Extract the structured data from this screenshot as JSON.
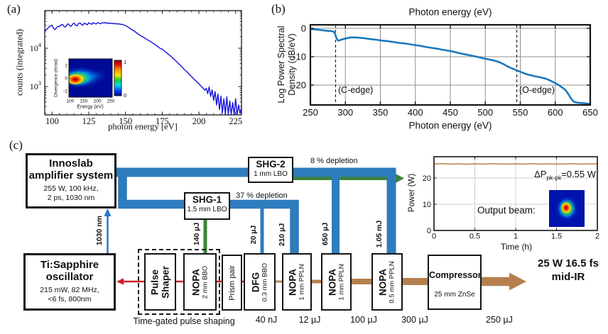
{
  "colors": {
    "spectrum_blue": "#1414d8",
    "psd_blue": "#1a79bd",
    "band_blue": "#2e7bbd",
    "seed_blue": "#2878c8",
    "green": "#3c8339",
    "red": "#cb2027",
    "brown": "#b5804e",
    "grid_gray": "#8f8f8f",
    "inset_grid": "#cfcfcf",
    "axis_black": "#151515"
  },
  "panel_a": {
    "tag": "(a)",
    "xlabel": "photon energy [eV]",
    "ylabel": "counts (integrated)",
    "xticks": [
      100,
      125,
      150,
      175,
      200,
      225
    ],
    "ytick_exponents": [
      4,
      3
    ],
    "inset": {
      "xlabel": "Energy (eV)",
      "ylabel": "Divergence (mrad)",
      "xticks": [
        100,
        150,
        200,
        250
      ],
      "yticks": [
        2,
        0,
        -2
      ],
      "cbar_max": "1",
      "cbar_min": "0"
    }
  },
  "panel_b": {
    "tag": "(b)",
    "title": "Photon energy (eV)",
    "xlabel": "Photon energy (eV)",
    "ylabel_line1": "Log Power Spectral",
    "ylabel_line2": "Density (dB/eV)",
    "xticks": [
      250,
      300,
      350,
      400,
      450,
      500,
      550,
      600,
      650
    ],
    "yticks": [
      0,
      -10,
      -20
    ],
    "c_edge_label": "(C-edge)",
    "o_edge_label": "(O-edge)"
  },
  "panel_c": {
    "tag": "(c)",
    "boxes": {
      "innoslab": {
        "line1": "Innoslab",
        "line2": "amplifier system",
        "sub1": "255 W, 100 kHz,",
        "sub2": "2 ps, 1030 nm"
      },
      "tisapphire": {
        "line1": "Ti:Sapphire",
        "line2": "oscillator",
        "sub1": "215 mW, 82 MHz,",
        "sub2": "<6 fs, 800nm"
      },
      "shg2": {
        "title": "SHG-2",
        "sub": "1 mm LBO"
      },
      "shg1": {
        "title": "SHG-1",
        "sub": "1.5 mm LBO"
      },
      "pulse_shaper": {
        "line1": "Pulse",
        "line2": "Shaper"
      },
      "nopa_bbo": {
        "title": "NOPA",
        "sub": "2 mm BBO"
      },
      "prism": {
        "title": "Prism pair"
      },
      "dfg": {
        "title": "DFG",
        "sub": "0.3 mm BBO"
      },
      "nopa_ppln1": {
        "title": "NOPA",
        "sub": "1 mm PPLN"
      },
      "nopa_ppln2": {
        "title": "NOPA",
        "sub": "1 mm PPLN"
      },
      "nopa_ppln3": {
        "title": "NOPA",
        "sub": "0.5 mm PPLN"
      },
      "compressor": {
        "title": "Compressor",
        "sub": "25 mm ZnSe"
      }
    },
    "labels": {
      "seed": "1030 nm",
      "e140": "140 µJ",
      "e20": "20 µJ",
      "e210": "210 µJ",
      "e650": "650 µJ",
      "e1050": "1.05 mJ",
      "dep37": "37 % depletion",
      "dep8": "8 % depletion",
      "tg": "Time-gated pulse shaping",
      "out1": "25 W 16.5 fs",
      "out2": "mid-IR",
      "u40": "40 nJ",
      "u12": "12 µJ",
      "u100": "100 µJ",
      "u300": "300 µJ",
      "u250": "250 µJ"
    },
    "inset": {
      "ylabel": "Power (W)",
      "xlabel": "Time (h)",
      "yticks": [
        0,
        10,
        20
      ],
      "xticks": [
        "0",
        "0.5",
        "1",
        "1.5",
        "2"
      ],
      "dp_prefix": "ΔP",
      "dp_sub": "pk-pk",
      "dp_value": "=0.55 W",
      "beam_label": "Output beam:"
    }
  },
  "chart_data": [
    {
      "type": "line",
      "name": "hhg-spectrum",
      "title": "",
      "xlabel": "photon energy [eV]",
      "ylabel": "counts (integrated)",
      "x_range": [
        95,
        229
      ],
      "y_scale": "log10",
      "y_range": [
        180,
        95000
      ],
      "points": [
        [
          95,
          27000
        ],
        [
          96,
          30000
        ],
        [
          97,
          33000
        ],
        [
          98,
          36000
        ],
        [
          99,
          38500
        ],
        [
          100,
          40000
        ],
        [
          101,
          33000
        ],
        [
          102,
          30500
        ],
        [
          103,
          34000
        ],
        [
          104,
          37500
        ],
        [
          105,
          36500
        ],
        [
          106,
          40500
        ],
        [
          107,
          42000
        ],
        [
          108,
          37500
        ],
        [
          109,
          36000
        ],
        [
          110,
          40000
        ],
        [
          111,
          43500
        ],
        [
          112,
          39000
        ],
        [
          113,
          37500
        ],
        [
          114,
          42500
        ],
        [
          115,
          45500
        ],
        [
          116,
          40000
        ],
        [
          117,
          38500
        ],
        [
          118,
          44000
        ],
        [
          119,
          46000
        ],
        [
          120,
          41500
        ],
        [
          121,
          40000
        ],
        [
          122,
          45000
        ],
        [
          123,
          43000
        ],
        [
          124,
          41000
        ],
        [
          125,
          46000
        ],
        [
          126,
          44000
        ],
        [
          127,
          42000
        ],
        [
          128,
          46500
        ],
        [
          129,
          44500
        ],
        [
          130,
          43000
        ],
        [
          131,
          46500
        ],
        [
          132,
          45000
        ],
        [
          133,
          43500
        ],
        [
          134,
          46500
        ],
        [
          135,
          45500
        ],
        [
          136,
          47000
        ],
        [
          137,
          44500
        ],
        [
          138,
          46000
        ],
        [
          139,
          44000
        ],
        [
          140,
          45500
        ],
        [
          141,
          43500
        ],
        [
          142,
          45000
        ],
        [
          143,
          43000
        ],
        [
          144,
          44000
        ],
        [
          145,
          42500
        ],
        [
          146,
          43500
        ],
        [
          147,
          41500
        ],
        [
          148,
          42000
        ],
        [
          149,
          40000
        ],
        [
          150,
          39000
        ],
        [
          151,
          37000
        ],
        [
          152,
          35000
        ],
        [
          153,
          33000
        ],
        [
          154,
          31000
        ],
        [
          155,
          29500
        ],
        [
          156,
          28000
        ],
        [
          157,
          26000
        ],
        [
          158,
          24500
        ],
        [
          159,
          23000
        ],
        [
          160,
          21500
        ],
        [
          161,
          20500
        ],
        [
          162,
          19500
        ],
        [
          163,
          18500
        ],
        [
          164,
          17500
        ],
        [
          165,
          16500
        ],
        [
          166,
          15800
        ],
        [
          167,
          15000
        ],
        [
          168,
          14200
        ],
        [
          169,
          13300
        ],
        [
          170,
          12500
        ],
        [
          171,
          11800
        ],
        [
          172,
          11000
        ],
        [
          173,
          10300
        ],
        [
          174,
          9700
        ],
        [
          175,
          9500
        ],
        [
          176,
          8800
        ],
        [
          177,
          8200
        ],
        [
          178,
          7600
        ],
        [
          179,
          7000
        ],
        [
          180,
          6600
        ],
        [
          181,
          6100
        ],
        [
          182,
          5600
        ],
        [
          183,
          5200
        ],
        [
          184,
          4800
        ],
        [
          185,
          4400
        ],
        [
          186,
          4000
        ],
        [
          187,
          3700
        ],
        [
          188,
          3400
        ],
        [
          189,
          3100
        ],
        [
          190,
          2800
        ],
        [
          191,
          2600
        ],
        [
          192,
          2400
        ],
        [
          193,
          2150
        ],
        [
          194,
          2000
        ],
        [
          195,
          1800
        ],
        [
          196,
          1650
        ],
        [
          197,
          1500
        ],
        [
          198,
          1400
        ],
        [
          199,
          1280
        ],
        [
          200,
          1180
        ],
        [
          201,
          1060
        ],
        [
          202,
          980
        ],
        [
          203,
          880
        ],
        [
          204,
          800
        ],
        [
          205,
          900
        ],
        [
          206,
          650
        ],
        [
          207,
          980
        ],
        [
          208,
          550
        ],
        [
          209,
          820
        ],
        [
          210,
          430
        ],
        [
          211,
          740
        ],
        [
          212,
          330
        ],
        [
          213,
          640
        ],
        [
          214,
          250
        ],
        [
          215,
          560
        ],
        [
          216,
          200
        ],
        [
          217,
          480
        ],
        [
          218,
          170
        ],
        [
          219,
          540
        ],
        [
          220,
          180
        ],
        [
          221,
          420
        ],
        [
          222,
          165
        ],
        [
          223,
          380
        ],
        [
          224,
          170
        ],
        [
          225,
          480
        ],
        [
          226,
          175
        ],
        [
          227,
          330
        ],
        [
          228,
          200
        ],
        [
          229,
          280
        ]
      ]
    },
    {
      "type": "line",
      "name": "soft-xray-psd",
      "title": "Photon energy (eV)",
      "xlabel": "Photon energy (eV)",
      "ylabel": "Log Power Spectral Density (dB/eV)",
      "x_range": [
        250,
        650
      ],
      "y_range": [
        -27,
        1.25
      ],
      "grid": true,
      "annotations": [
        {
          "x": 286,
          "label": "(C-edge)"
        },
        {
          "x": 545,
          "label": "(O-edge)"
        }
      ],
      "points": [
        [
          250,
          -0.2
        ],
        [
          256,
          -0.35
        ],
        [
          262,
          -0.5
        ],
        [
          268,
          -0.7
        ],
        [
          274,
          -0.85
        ],
        [
          279,
          -0.95
        ],
        [
          283,
          -1.1
        ],
        [
          285,
          -1.8
        ],
        [
          287,
          -3.2
        ],
        [
          289,
          -4.2
        ],
        [
          291,
          -4.3
        ],
        [
          294,
          -4.0
        ],
        [
          298,
          -3.7
        ],
        [
          303,
          -3.4
        ],
        [
          308,
          -3.2
        ],
        [
          314,
          -3.2
        ],
        [
          320,
          -3.3
        ],
        [
          328,
          -3.5
        ],
        [
          336,
          -3.8
        ],
        [
          344,
          -4.0
        ],
        [
          352,
          -4.3
        ],
        [
          360,
          -4.5
        ],
        [
          368,
          -4.8
        ],
        [
          376,
          -5.1
        ],
        [
          384,
          -5.3
        ],
        [
          392,
          -5.6
        ],
        [
          400,
          -5.9
        ],
        [
          408,
          -6.2
        ],
        [
          416,
          -6.6
        ],
        [
          424,
          -6.9
        ],
        [
          432,
          -7.2
        ],
        [
          440,
          -7.6
        ],
        [
          448,
          -7.9
        ],
        [
          456,
          -8.3
        ],
        [
          464,
          -8.8
        ],
        [
          472,
          -9.2
        ],
        [
          480,
          -9.6
        ],
        [
          488,
          -10.0
        ],
        [
          496,
          -10.5
        ],
        [
          504,
          -10.9
        ],
        [
          510,
          -11.2
        ],
        [
          516,
          -11.6
        ],
        [
          521,
          -12.0
        ],
        [
          526,
          -12.6
        ],
        [
          531,
          -13.3
        ],
        [
          536,
          -13.9
        ],
        [
          541,
          -14.4
        ],
        [
          546,
          -14.9
        ],
        [
          551,
          -15.4
        ],
        [
          556,
          -15.9
        ],
        [
          561,
          -16.3
        ],
        [
          566,
          -16.6
        ],
        [
          571,
          -16.9
        ],
        [
          576,
          -17.1
        ],
        [
          581,
          -17.4
        ],
        [
          586,
          -17.7
        ],
        [
          591,
          -18.2
        ],
        [
          596,
          -18.8
        ],
        [
          601,
          -19.4
        ],
        [
          605,
          -20.0
        ],
        [
          609,
          -20.7
        ],
        [
          613,
          -21.4
        ],
        [
          616,
          -22.2
        ],
        [
          619,
          -23.3
        ],
        [
          622,
          -24.5
        ],
        [
          625,
          -25.5
        ],
        [
          628,
          -26.0
        ],
        [
          632,
          -26.2
        ],
        [
          637,
          -26.3
        ],
        [
          642,
          -26.4
        ],
        [
          646,
          -26.5
        ],
        [
          650,
          -26.6
        ]
      ]
    },
    {
      "type": "line",
      "name": "power-stability",
      "xlabel": "Time (h)",
      "ylabel": "Power (W)",
      "x_range": [
        0,
        2
      ],
      "y_range": [
        0,
        30
      ],
      "mean_power_w": 25.3,
      "points": [
        [
          0,
          25.3
        ],
        [
          0.1,
          25.45
        ],
        [
          0.2,
          25.3
        ],
        [
          0.3,
          25.4
        ],
        [
          0.4,
          25.25
        ],
        [
          0.5,
          25.4
        ],
        [
          0.6,
          25.3
        ],
        [
          0.7,
          25.45
        ],
        [
          0.8,
          25.35
        ],
        [
          0.9,
          25.3
        ],
        [
          1.0,
          25.4
        ],
        [
          1.1,
          25.3
        ],
        [
          1.2,
          25.45
        ],
        [
          1.3,
          25.3
        ],
        [
          1.4,
          25.4
        ],
        [
          1.5,
          25.3
        ],
        [
          1.6,
          25.35
        ],
        [
          1.7,
          25.45
        ],
        [
          1.8,
          25.3
        ],
        [
          1.9,
          25.4
        ],
        [
          2.0,
          25.35
        ]
      ]
    },
    {
      "type": "heatmap",
      "name": "divergence-map",
      "xlabel": "Energy (eV)",
      "ylabel": "Divergence (mrad)",
      "x_range": [
        95,
        255
      ],
      "y_range": [
        -3,
        3
      ],
      "colorbar_range": [
        0,
        1
      ],
      "peak": {
        "energy_ev": 120,
        "divergence_mrad": -0.3
      }
    }
  ]
}
